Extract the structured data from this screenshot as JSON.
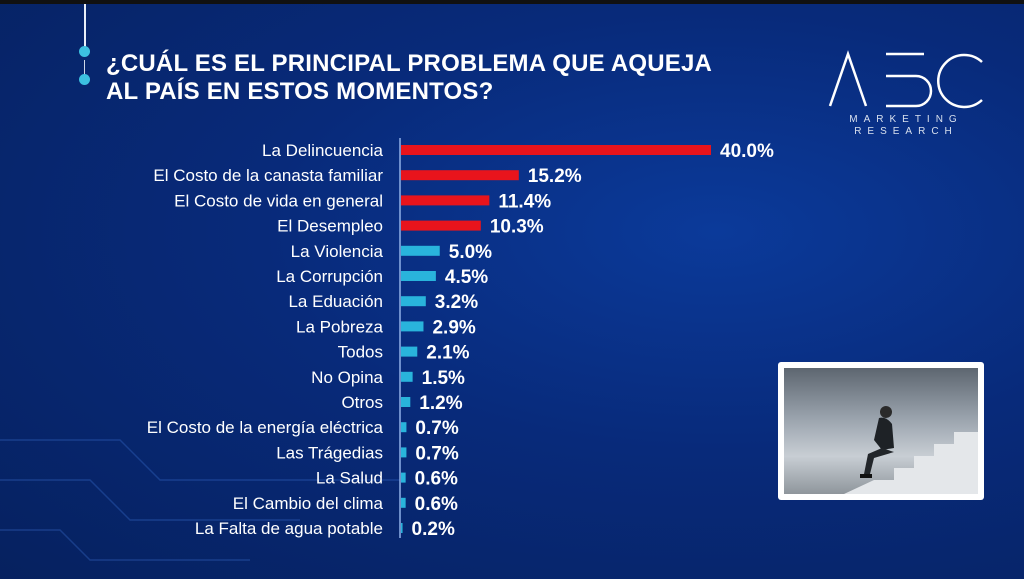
{
  "title_lines": [
    "¿CUÁL ES EL PRINCIPAL PROBLEMA QUE AQUEJA",
    "AL PAÍS EN ESTOS MOMENTOS?"
  ],
  "logo": {
    "mark": "ABC",
    "sub1": "MARKETING",
    "sub2": "RESEARCH"
  },
  "colors": {
    "top_bars": "#e8141c",
    "other_bars": "#29b4dc",
    "background": "#082a7a"
  },
  "chart_data": {
    "type": "bar",
    "orientation": "horizontal",
    "title": "¿CUÁL ES EL PRINCIPAL PROBLEMA QUE AQUEJA AL PAÍS EN ESTOS MOMENTOS?",
    "categories": [
      "La Delincuencia",
      "El Costo de la canasta familiar",
      "El Costo de vida en general",
      "El Desempleo",
      "La Violencia",
      "La Corrupción",
      "La Eduación",
      "La Pobreza",
      "Todos",
      "No Opina",
      "Otros",
      "El Costo de la energía eléctrica",
      "Las Trágedias",
      "La Salud",
      "El Cambio del clima",
      "La Falta de agua potable"
    ],
    "values": [
      40.0,
      15.2,
      11.4,
      10.3,
      5.0,
      4.5,
      3.2,
      2.9,
      2.1,
      1.5,
      1.2,
      0.7,
      0.7,
      0.6,
      0.6,
      0.2
    ],
    "value_labels": [
      "40.0%",
      "15.2%",
      "11.4%",
      "10.3%",
      "5.0%",
      "4.5%",
      "3.2%",
      "2.9%",
      "2.1%",
      "1.5%",
      "1.2%",
      "0.7%",
      "0.7%",
      "0.6%",
      "0.6%",
      "0.2%"
    ],
    "highlighted_count": 4,
    "xlim": [
      0,
      40
    ],
    "grid": false,
    "legend": "none"
  }
}
